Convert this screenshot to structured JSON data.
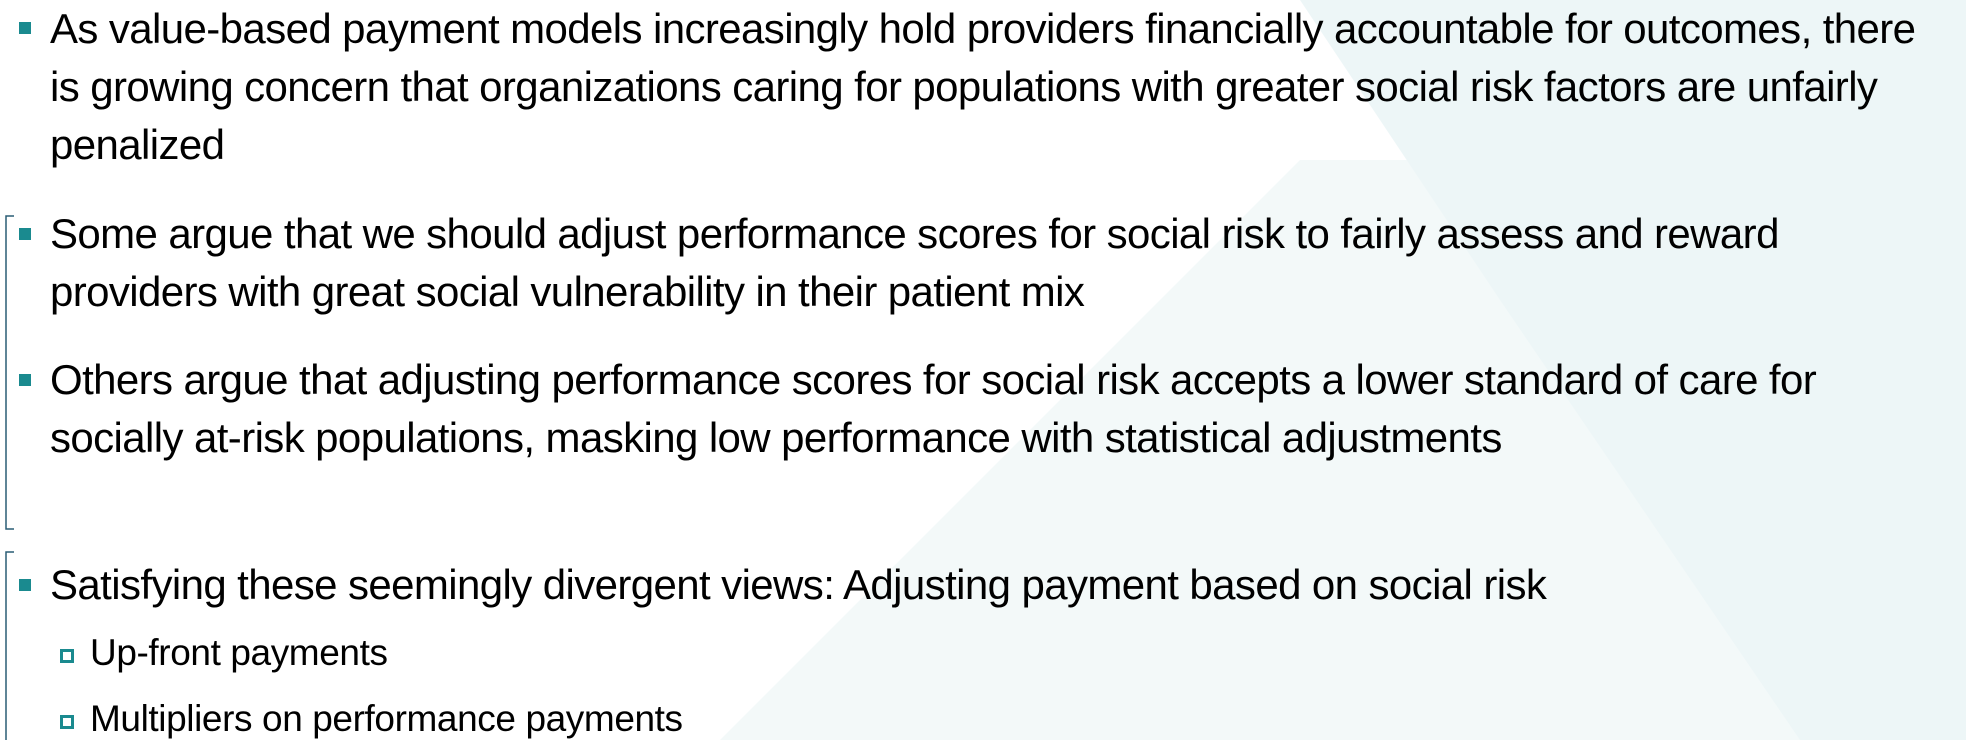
{
  "bullets": [
    {
      "text": "As value-based payment models increasingly hold providers financially accountable for outcomes, there is growing concern that organizations caring for populations with greater social risk factors are unfairly penalized"
    },
    {
      "text": "Some argue that we should adjust performance scores for social risk to fairly assess and reward providers with great social vulnerability in their patient mix"
    },
    {
      "text": "Others argue that adjusting performance scores for social risk accepts a lower standard of care for socially at-risk populations, masking low performance with statistical adjustments"
    },
    {
      "text": "Satisfying these seemingly divergent views: Adjusting payment based on social risk",
      "sub_bullets": [
        "Up-front payments",
        "Multipliers on performance payments"
      ]
    }
  ]
}
